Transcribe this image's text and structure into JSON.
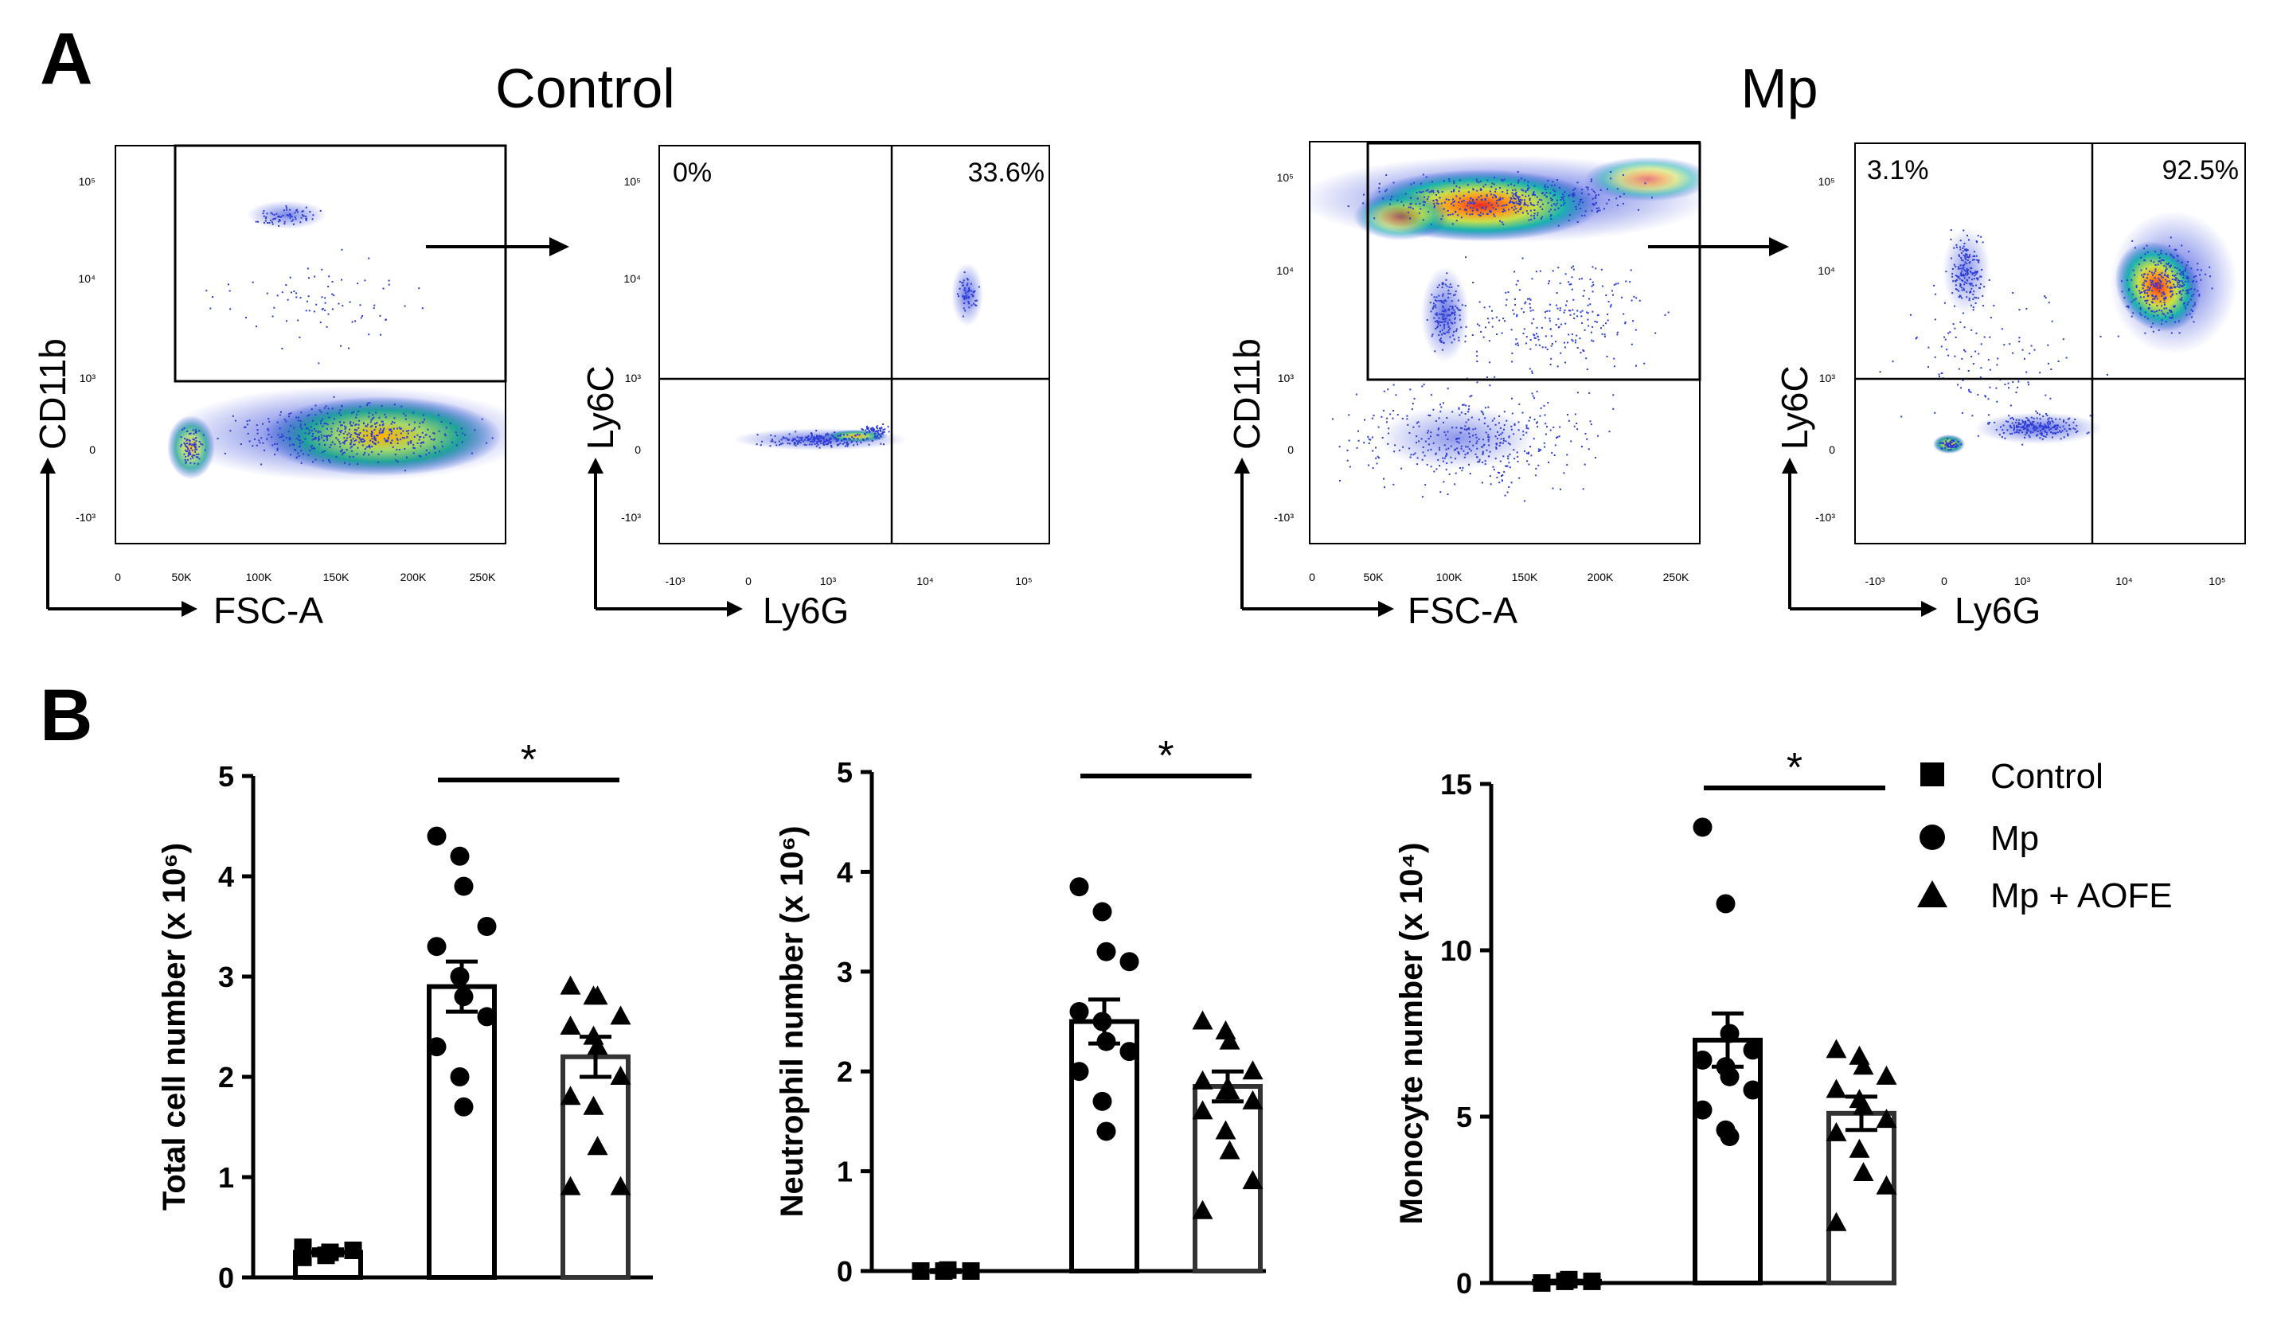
{
  "panel_a": {
    "label": "A",
    "conditions": [
      "Control",
      "Mp"
    ],
    "plots": [
      {
        "condition": "Control",
        "x_axis": "FSC-A",
        "y_axis": "CD11b",
        "x_ticks": [
          "0",
          "50K",
          "100K",
          "150K",
          "200K",
          "250K"
        ],
        "y_ticks": [
          "10⁵",
          "10⁴",
          "10³",
          "0",
          "-10³"
        ]
      },
      {
        "condition": "Control",
        "x_axis": "Ly6G",
        "y_axis": "Ly6C",
        "x_ticks": [
          "-10³",
          "0",
          "10³",
          "10⁴",
          "10⁵"
        ],
        "y_ticks": [
          "10⁵",
          "10⁴",
          "10³",
          "0",
          "-10³"
        ],
        "quadrant_top_left": "0%",
        "quadrant_top_right": "33.6%"
      },
      {
        "condition": "Mp",
        "x_axis": "FSC-A",
        "y_axis": "CD11b",
        "x_ticks": [
          "0",
          "50K",
          "100K",
          "150K",
          "200K",
          "250K"
        ],
        "y_ticks": [
          "10⁵",
          "10⁴",
          "10³",
          "0",
          "-10³"
        ]
      },
      {
        "condition": "Mp",
        "x_axis": "Ly6G",
        "y_axis": "Ly6C",
        "x_ticks": [
          "-10³",
          "0",
          "10³",
          "10⁴",
          "10⁵"
        ],
        "y_ticks": [
          "10⁵",
          "10⁴",
          "10³",
          "0",
          "-10³"
        ],
        "quadrant_top_left": "3.1%",
        "quadrant_top_right": "92.5%"
      }
    ]
  },
  "panel_b": {
    "label": "B",
    "legend": [
      {
        "marker": "square",
        "label": "Control"
      },
      {
        "marker": "circle",
        "label": "Mp"
      },
      {
        "marker": "triangle",
        "label": "Mp + AOFE"
      }
    ],
    "significance": "*"
  },
  "chart_data": [
    {
      "type": "bar",
      "ylabel": "Total cell number (x 10⁶)",
      "categories": [
        "Control",
        "Mp",
        "Mp + AOFE"
      ],
      "ylim": [
        0,
        5
      ],
      "yticks": [
        "0",
        "1",
        "2",
        "3",
        "4",
        "5"
      ],
      "means": [
        0.25,
        2.9,
        2.2
      ],
      "sem": [
        0.03,
        0.25,
        0.2
      ],
      "points": [
        [
          0.2,
          0.22,
          0.25,
          0.27,
          0.3
        ],
        [
          4.4,
          4.2,
          3.9,
          3.5,
          3.3,
          3.0,
          2.8,
          2.6,
          2.3,
          2.0,
          1.7
        ],
        [
          2.9,
          2.8,
          2.8,
          2.6,
          2.5,
          2.4,
          2.3,
          2.0,
          1.8,
          1.7,
          1.3,
          0.9,
          0.9
        ]
      ],
      "significance": {
        "between": [
          "Mp",
          "Mp + AOFE"
        ],
        "label": "*"
      }
    },
    {
      "type": "bar",
      "ylabel": "Neutrophil number (x 10⁶)",
      "categories": [
        "Control",
        "Mp",
        "Mp + AOFE"
      ],
      "ylim": [
        0,
        5
      ],
      "yticks": [
        "0",
        "1",
        "2",
        "3",
        "4",
        "5"
      ],
      "means": [
        0.0,
        2.5,
        1.85
      ],
      "sem": [
        0.01,
        0.22,
        0.15
      ],
      "points": [
        [
          0.0,
          0.0,
          0.01,
          0.0,
          0.0
        ],
        [
          3.85,
          3.6,
          3.2,
          3.1,
          2.6,
          2.5,
          2.3,
          2.2,
          2.0,
          1.7,
          1.4
        ],
        [
          2.5,
          2.4,
          2.3,
          2.0,
          1.9,
          1.8,
          1.8,
          1.7,
          1.6,
          1.4,
          1.2,
          0.9,
          0.6
        ]
      ],
      "significance": {
        "between": [
          "Mp",
          "Mp + AOFE"
        ],
        "label": "*"
      }
    },
    {
      "type": "bar",
      "ylabel": "Monocyte number (x 10⁴)",
      "categories": [
        "Control",
        "Mp",
        "Mp + AOFE"
      ],
      "ylim": [
        0,
        15
      ],
      "yticks": [
        "0",
        "5",
        "10",
        "15"
      ],
      "means": [
        0.05,
        7.3,
        5.1
      ],
      "sem": [
        0.02,
        0.8,
        0.5
      ],
      "points": [
        [
          0.0,
          0.05,
          0.1,
          0.05,
          0.0
        ],
        [
          13.7,
          11.4,
          7.5,
          7.0,
          6.7,
          6.5,
          6.2,
          5.8,
          5.2,
          4.6,
          4.4
        ],
        [
          7.0,
          6.8,
          6.5,
          6.2,
          5.8,
          5.5,
          5.3,
          4.9,
          4.5,
          4.0,
          3.3,
          2.9,
          1.8
        ]
      ],
      "significance": {
        "between": [
          "Mp",
          "Mp + AOFE"
        ],
        "label": "*"
      }
    }
  ]
}
